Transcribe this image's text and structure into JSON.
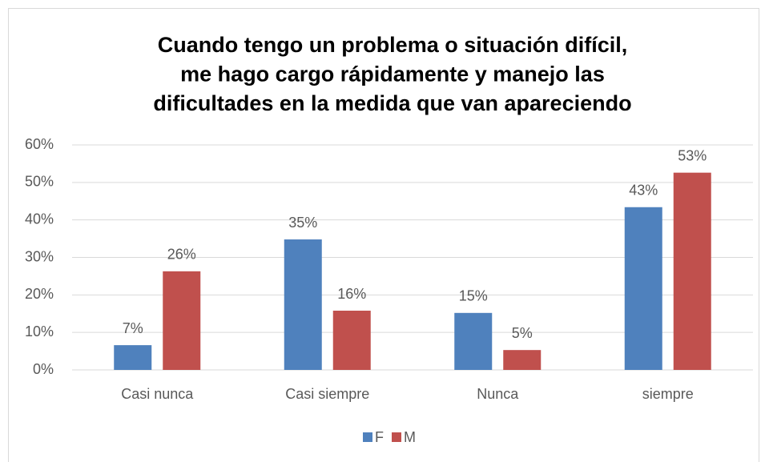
{
  "chart_data": {
    "type": "bar",
    "title": [
      "Cuando tengo un problema o situación difícil,",
      "me hago cargo rápidamente y manejo las",
      "dificultades en la medida que van apareciendo"
    ],
    "categories": [
      "Casi nunca",
      "Casi siempre",
      "Nunca",
      "siempre"
    ],
    "series": [
      {
        "name": "F",
        "color": "#4f81bd",
        "values": [
          6.6,
          34.8,
          15.2,
          43.4
        ],
        "value_labels": [
          "7%",
          "35%",
          "15%",
          "43%"
        ]
      },
      {
        "name": "M",
        "color": "#c0504d",
        "values": [
          26.3,
          15.8,
          5.3,
          52.6
        ],
        "value_labels": [
          "26%",
          "16%",
          "5%",
          "53%"
        ]
      }
    ],
    "ylim": [
      0,
      60
    ],
    "yticks": [
      {
        "value": 0,
        "label": "0%"
      },
      {
        "value": 10,
        "label": "10%"
      },
      {
        "value": 20,
        "label": "20%"
      },
      {
        "value": 30,
        "label": "30%"
      },
      {
        "value": 40,
        "label": "40%"
      },
      {
        "value": 50,
        "label": "50%"
      },
      {
        "value": 60,
        "label": "60%"
      }
    ],
    "grid": true,
    "legend": "bottom"
  }
}
